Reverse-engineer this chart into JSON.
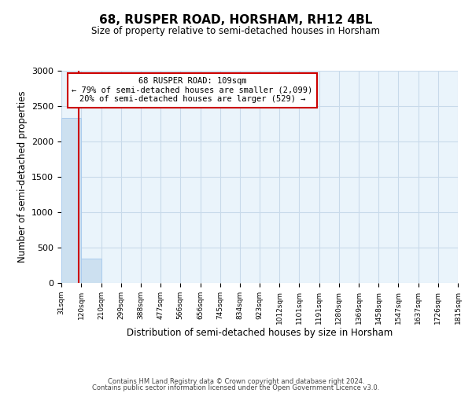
{
  "title": "68, RUSPER ROAD, HORSHAM, RH12 4BL",
  "subtitle": "Size of property relative to semi-detached houses in Horsham",
  "xlabel": "Distribution of semi-detached houses by size in Horsham",
  "ylabel": "Number of semi-detached properties",
  "property_label": "68 RUSPER ROAD: 109sqm",
  "pct_smaller": 79,
  "count_smaller": 2099,
  "pct_larger": 20,
  "count_larger": 529,
  "bar_edges": [
    31,
    120,
    210,
    299,
    388,
    477,
    566,
    656,
    745,
    834,
    923,
    1012,
    1101,
    1191,
    1280,
    1369,
    1458,
    1547,
    1637,
    1726,
    1815
  ],
  "bar_heights": [
    2330,
    340,
    0,
    0,
    0,
    0,
    0,
    0,
    0,
    0,
    0,
    0,
    0,
    0,
    0,
    0,
    0,
    0,
    0,
    0
  ],
  "bar_color": "#cce0f0",
  "bar_edgecolor": "#aaccee",
  "vline_color": "#cc0000",
  "vline_x": 109,
  "annotation_box_edgecolor": "#cc0000",
  "grid_color": "#c8daea",
  "background_color": "#eaf4fb",
  "ylim": [
    0,
    3000
  ],
  "tick_labels": [
    "31sqm",
    "120sqm",
    "210sqm",
    "299sqm",
    "388sqm",
    "477sqm",
    "566sqm",
    "656sqm",
    "745sqm",
    "834sqm",
    "923sqm",
    "1012sqm",
    "1101sqm",
    "1191sqm",
    "1280sqm",
    "1369sqm",
    "1458sqm",
    "1547sqm",
    "1637sqm",
    "1726sqm",
    "1815sqm"
  ],
  "footer_line1": "Contains HM Land Registry data © Crown copyright and database right 2024.",
  "footer_line2": "Contains public sector information licensed under the Open Government Licence v3.0."
}
